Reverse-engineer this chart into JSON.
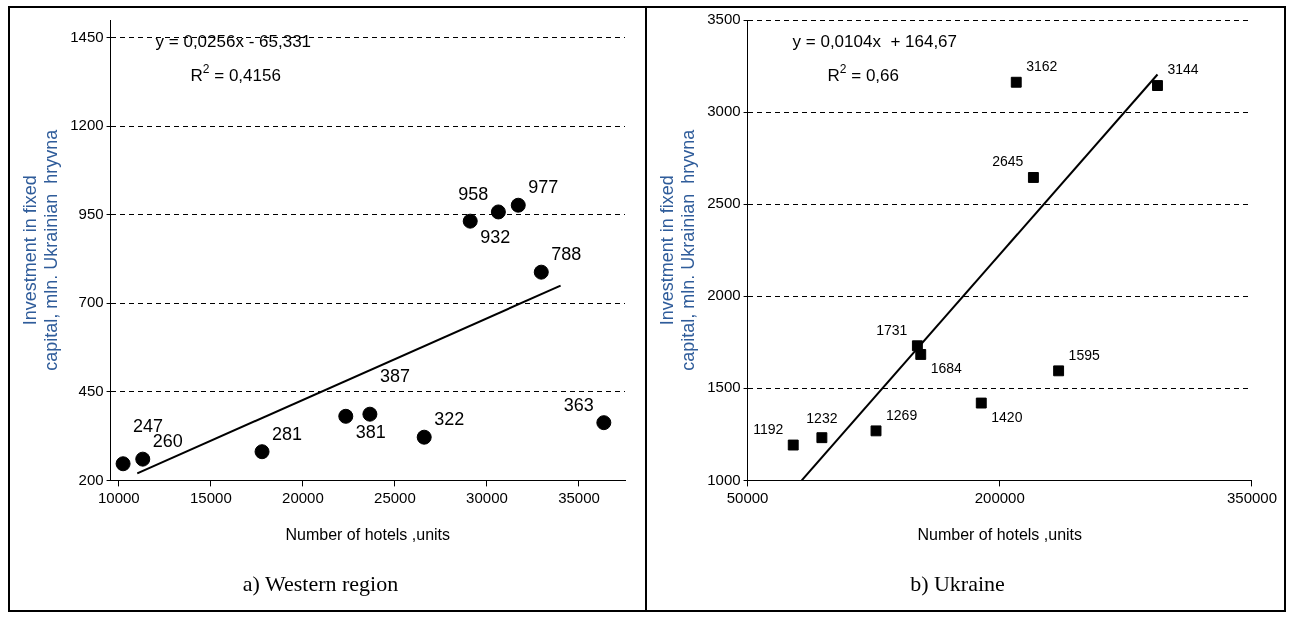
{
  "chart_data": [
    {
      "type": "scatter",
      "title": "a) Western region",
      "xlabel": "Number of hotels ,units",
      "ylabel": "Investment in fixed capital, mln. Ukrainian  hryvna",
      "xlim": [
        9550,
        37500
      ],
      "xticks": [
        10000,
        15000,
        20000,
        25000,
        30000,
        35000
      ],
      "ylim": [
        200,
        1500
      ],
      "yticks": [
        200,
        450,
        700,
        950,
        1200,
        1450
      ],
      "grid": "y",
      "marker": "circle",
      "annotations": [
        "y = 0,0256x - 65,331",
        "R$^{2}$ = 0,4156"
      ],
      "series": [
        {
          "color": "#000000",
          "x": [
            10230,
            11300,
            17780,
            22330,
            23640,
            26590,
            36350,
            29090,
            30620,
            31700,
            32950
          ],
          "values": [
            247,
            260,
            281,
            381,
            387,
            322,
            363,
            932,
            958,
            977,
            788
          ],
          "value_labels": [
            "247",
            "260",
            "281",
            "381",
            "387",
            "322",
            "363",
            "932",
            "958",
            "977",
            "788"
          ]
        },
        {
          "type": "line",
          "color": "#000000",
          "marker": "none",
          "x": [
            11000,
            34000
          ],
          "values": [
            220,
            750
          ]
        }
      ]
    },
    {
      "type": "scatter",
      "title": "b) Ukraine",
      "xlabel": "Number of hotels ,units",
      "ylabel": "Investment in fixed capital, mln. Ukrainian  hryvna",
      "xlim": [
        50000,
        350000
      ],
      "xticks": [
        50000,
        200000,
        350000
      ],
      "ylim": [
        1000,
        3500
      ],
      "yticks": [
        1000,
        1500,
        2000,
        2500,
        3000,
        3500
      ],
      "grid": "y",
      "marker": "square",
      "annotations": [
        "y = 0,0104x  + 164,67",
        "R$^{2}$ = 0,66"
      ],
      "series": [
        {
          "color": "#000000",
          "x": [
            77160,
            94200,
            126400,
            151000,
            153000,
            189000,
            235000,
            209800,
            220000,
            293800
          ],
          "values": [
            1192,
            1232,
            1269,
            1731,
            1684,
            1420,
            1595,
            3162,
            2645,
            3144
          ],
          "value_labels": [
            "1192",
            "1232",
            "1269",
            "1731",
            "1684",
            "1420",
            "1595",
            "3162",
            "2645",
            "3144"
          ]
        },
        {
          "type": "line",
          "color": "#000000",
          "marker": "none",
          "x": [
            82200,
            293800
          ],
          "values": [
            1000,
            3204
          ]
        }
      ]
    }
  ]
}
